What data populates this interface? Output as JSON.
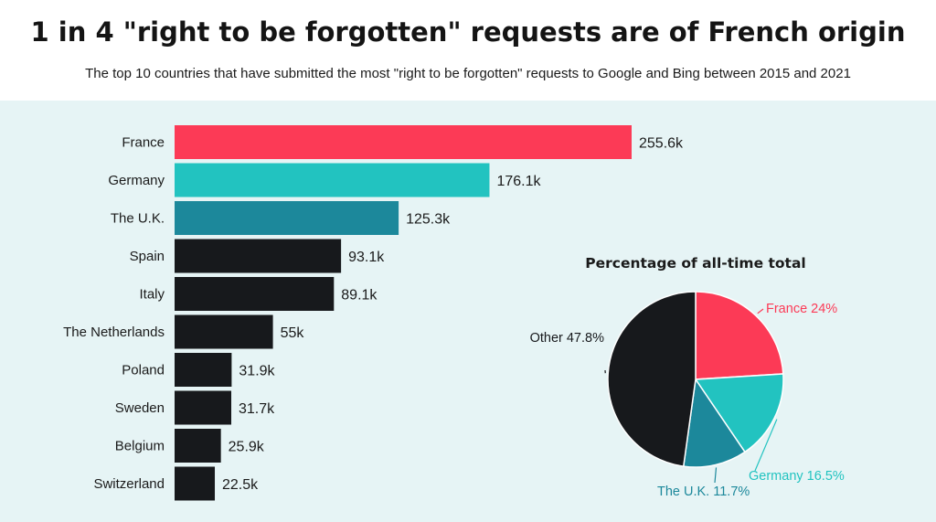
{
  "title": "1 in 4 \"right to be forgotten\" requests are of French origin",
  "subtitle": "The top 10 countries that have submitted the most \"right to be forgotten\" requests to Google and Bing between 2015 and 2021",
  "colors": {
    "france": "#fc3a56",
    "germany": "#22c3c0",
    "uk": "#1c889b",
    "other": "#17191c",
    "panel": "#e6f4f5"
  },
  "chart_data": [
    {
      "type": "bar",
      "orientation": "horizontal",
      "categories": [
        "France",
        "Germany",
        "The U.K.",
        "Spain",
        "Italy",
        "The Netherlands",
        "Poland",
        "Sweden",
        "Belgium",
        "Switzerland"
      ],
      "values": [
        255.6,
        176.1,
        125.3,
        93.1,
        89.1,
        55,
        31.9,
        31.7,
        25.9,
        22.5
      ],
      "value_labels": [
        "255.6k",
        "176.1k",
        "125.3k",
        "93.1k",
        "89.1k",
        "55k",
        "31.9k",
        "31.7k",
        "25.9k",
        "22.5k"
      ],
      "bar_colors": [
        "#fc3a56",
        "#22c3c0",
        "#1c889b",
        "#17191c",
        "#17191c",
        "#17191c",
        "#17191c",
        "#17191c",
        "#17191c",
        "#17191c"
      ],
      "unit": "k"
    },
    {
      "type": "pie",
      "title": "Percentage of all-time total",
      "slices": [
        {
          "label": "France 24%",
          "value": 24,
          "color": "#fc3a56"
        },
        {
          "label": "Germany 16.5%",
          "value": 16.5,
          "color": "#22c3c0"
        },
        {
          "label": "The U.K. 11.7%",
          "value": 11.7,
          "color": "#1c889b"
        },
        {
          "label": "Other 47.8%",
          "value": 47.8,
          "color": "#17191c"
        }
      ]
    }
  ]
}
